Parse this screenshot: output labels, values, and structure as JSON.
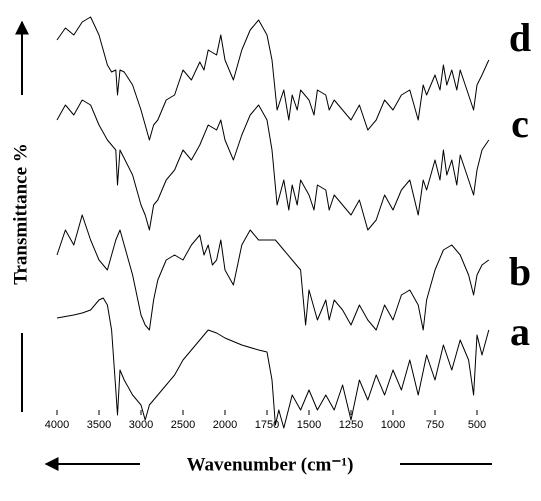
{
  "chart_data": {
    "type": "line",
    "x_label": "Wavenumber (cm⁻¹)",
    "y_label": "Transmittance %",
    "xlim": [
      4000,
      430
    ],
    "xticks": [
      4000,
      3500,
      3000,
      2500,
      2000,
      1750,
      1500,
      1250,
      1000,
      750,
      500
    ],
    "ylim": [
      -20,
      400
    ],
    "series": [
      {
        "name": "d",
        "color": "#000000",
        "x": [
          4000,
          3900,
          3800,
          3700,
          3600,
          3500,
          3400,
          3350,
          3300,
          3280,
          3250,
          3200,
          3100,
          3000,
          2950,
          2900,
          2850,
          2800,
          2700,
          2600,
          2500,
          2400,
          2300,
          2250,
          2200,
          2100,
          2050,
          2000,
          1950,
          1900,
          1850,
          1800,
          1750,
          1720,
          1690,
          1650,
          1620,
          1600,
          1570,
          1550,
          1500,
          1470,
          1450,
          1400,
          1380,
          1350,
          1300,
          1250,
          1200,
          1150,
          1100,
          1050,
          1000,
          950,
          900,
          850,
          820,
          800,
          750,
          720,
          700,
          680,
          650,
          620,
          600,
          550,
          520,
          500,
          470,
          430
        ],
        "values": [
          370,
          382,
          375,
          388,
          393,
          375,
          345,
          338,
          340,
          315,
          340,
          338,
          325,
          300,
          285,
          270,
          285,
          290,
          310,
          315,
          340,
          330,
          348,
          340,
          360,
          355,
          375,
          350,
          330,
          360,
          380,
          390,
          375,
          350,
          300,
          320,
          290,
          315,
          300,
          320,
          310,
          295,
          320,
          315,
          300,
          310,
          300,
          290,
          305,
          280,
          290,
          310,
          300,
          315,
          320,
          290,
          325,
          315,
          335,
          320,
          345,
          325,
          340,
          320,
          340,
          315,
          300,
          325,
          335,
          350
        ]
      },
      {
        "name": "c",
        "color": "#000000",
        "x": [
          4000,
          3900,
          3800,
          3700,
          3600,
          3500,
          3400,
          3300,
          3280,
          3250,
          3100,
          3000,
          2950,
          2900,
          2850,
          2800,
          2700,
          2600,
          2500,
          2400,
          2300,
          2200,
          2100,
          2050,
          2000,
          1950,
          1900,
          1850,
          1800,
          1750,
          1720,
          1690,
          1650,
          1620,
          1600,
          1570,
          1550,
          1500,
          1470,
          1450,
          1400,
          1380,
          1350,
          1300,
          1250,
          1200,
          1150,
          1100,
          1050,
          1000,
          950,
          900,
          850,
          820,
          800,
          750,
          720,
          700,
          680,
          650,
          620,
          600,
          550,
          520,
          500,
          470,
          430
        ],
        "values": [
          290,
          305,
          295,
          310,
          305,
          285,
          270,
          260,
          225,
          260,
          235,
          205,
          195,
          180,
          205,
          210,
          230,
          240,
          260,
          250,
          265,
          285,
          280,
          290,
          270,
          250,
          275,
          295,
          305,
          290,
          260,
          205,
          230,
          200,
          225,
          205,
          230,
          215,
          200,
          225,
          220,
          200,
          215,
          205,
          195,
          210,
          180,
          190,
          215,
          200,
          220,
          230,
          195,
          230,
          220,
          250,
          230,
          260,
          235,
          250,
          225,
          255,
          230,
          215,
          240,
          260,
          270
        ]
      },
      {
        "name": "b",
        "color": "#000000",
        "x": [
          4000,
          3900,
          3800,
          3700,
          3600,
          3500,
          3400,
          3300,
          3250,
          3200,
          3100,
          3000,
          2950,
          2900,
          2850,
          2800,
          2700,
          2600,
          2500,
          2400,
          2300,
          2250,
          2200,
          2150,
          2100,
          2050,
          2000,
          1950,
          1900,
          1850,
          1800,
          1750,
          1700,
          1650,
          1600,
          1550,
          1520,
          1500,
          1450,
          1400,
          1380,
          1350,
          1300,
          1250,
          1200,
          1150,
          1100,
          1050,
          1000,
          950,
          900,
          850,
          820,
          800,
          750,
          700,
          650,
          600,
          550,
          520,
          500,
          470,
          430
        ],
        "values": [
          155,
          180,
          165,
          195,
          170,
          150,
          140,
          170,
          180,
          165,
          135,
          95,
          85,
          80,
          110,
          130,
          150,
          155,
          150,
          165,
          175,
          155,
          165,
          145,
          150,
          170,
          140,
          125,
          165,
          180,
          170,
          170,
          170,
          160,
          150,
          140,
          85,
          120,
          90,
          110,
          90,
          110,
          100,
          85,
          105,
          90,
          80,
          105,
          90,
          115,
          120,
          105,
          80,
          110,
          140,
          160,
          165,
          155,
          135,
          115,
          135,
          145,
          150
        ]
      },
      {
        "name": "a",
        "color": "#000000",
        "x": [
          4000,
          3800,
          3700,
          3600,
          3500,
          3450,
          3400,
          3350,
          3300,
          3280,
          3250,
          3200,
          3100,
          3000,
          2950,
          2900,
          2800,
          2700,
          2600,
          2500,
          2400,
          2300,
          2200,
          2100,
          2000,
          1900,
          1800,
          1750,
          1720,
          1700,
          1680,
          1650,
          1600,
          1550,
          1500,
          1450,
          1400,
          1350,
          1300,
          1250,
          1200,
          1150,
          1100,
          1050,
          1000,
          950,
          900,
          850,
          800,
          750,
          700,
          650,
          600,
          550,
          520,
          500,
          470,
          430
        ],
        "values": [
          92,
          95,
          97,
          100,
          110,
          112,
          105,
          80,
          20,
          -5,
          40,
          30,
          15,
          5,
          -10,
          5,
          15,
          25,
          35,
          50,
          60,
          70,
          80,
          77,
          72,
          65,
          60,
          58,
          30,
          -15,
          0,
          -18,
          15,
          0,
          20,
          0,
          15,
          0,
          25,
          -10,
          30,
          10,
          35,
          15,
          40,
          20,
          50,
          15,
          55,
          30,
          65,
          40,
          70,
          50,
          15,
          75,
          55,
          80
        ]
      }
    ]
  }
}
